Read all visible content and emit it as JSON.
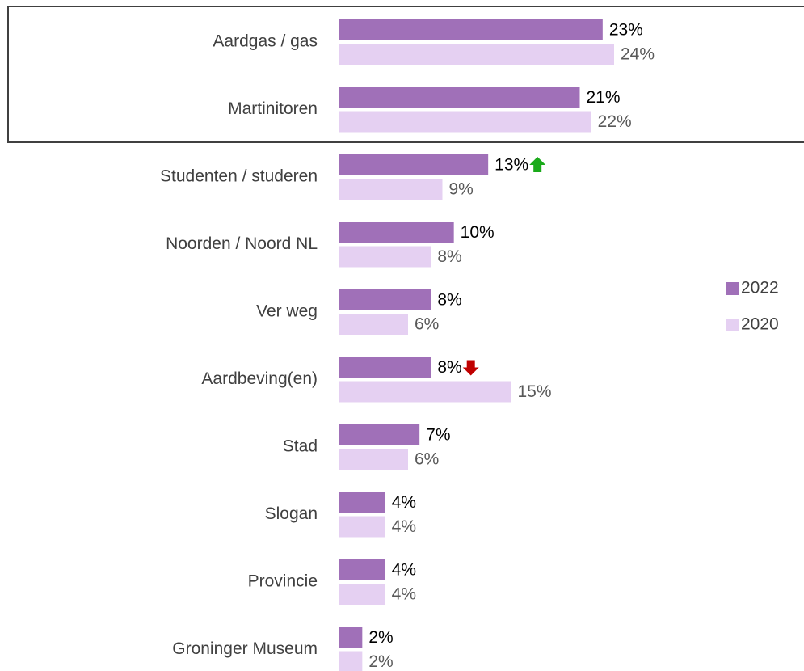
{
  "chart_data": {
    "type": "hbar",
    "categories": [
      "Aardgas / gas",
      "Martinitoren",
      "Studenten / studeren",
      "Noorden / Noord NL",
      "Ver weg",
      "Aardbeving(en)",
      "Stad",
      "Slogan",
      "Provincie",
      "Groninger Museum"
    ],
    "series": [
      {
        "name": "2022",
        "color": "#a070b8",
        "values": [
          23,
          21,
          13,
          10,
          8,
          8,
          7,
          4,
          4,
          2
        ],
        "value_labels": [
          "23%",
          "21%",
          "13%",
          "10%",
          "8%",
          "8%",
          "7%",
          "4%",
          "4%",
          "2%"
        ]
      },
      {
        "name": "2020",
        "color": "#e5d0f2",
        "values": [
          24,
          22,
          9,
          8,
          6,
          15,
          6,
          4,
          4,
          2
        ],
        "value_labels": [
          "24%",
          "22%",
          "9%",
          "8%",
          "6%",
          "15%",
          "6%",
          "4%",
          "4%",
          "2%"
        ]
      }
    ],
    "xlim": [
      0,
      24
    ],
    "trend": [
      null,
      null,
      "up",
      null,
      null,
      "down",
      null,
      null,
      null,
      null
    ],
    "trend_colors": {
      "up": "#1aaa1a",
      "down": "#c00000"
    },
    "legend": "right"
  }
}
